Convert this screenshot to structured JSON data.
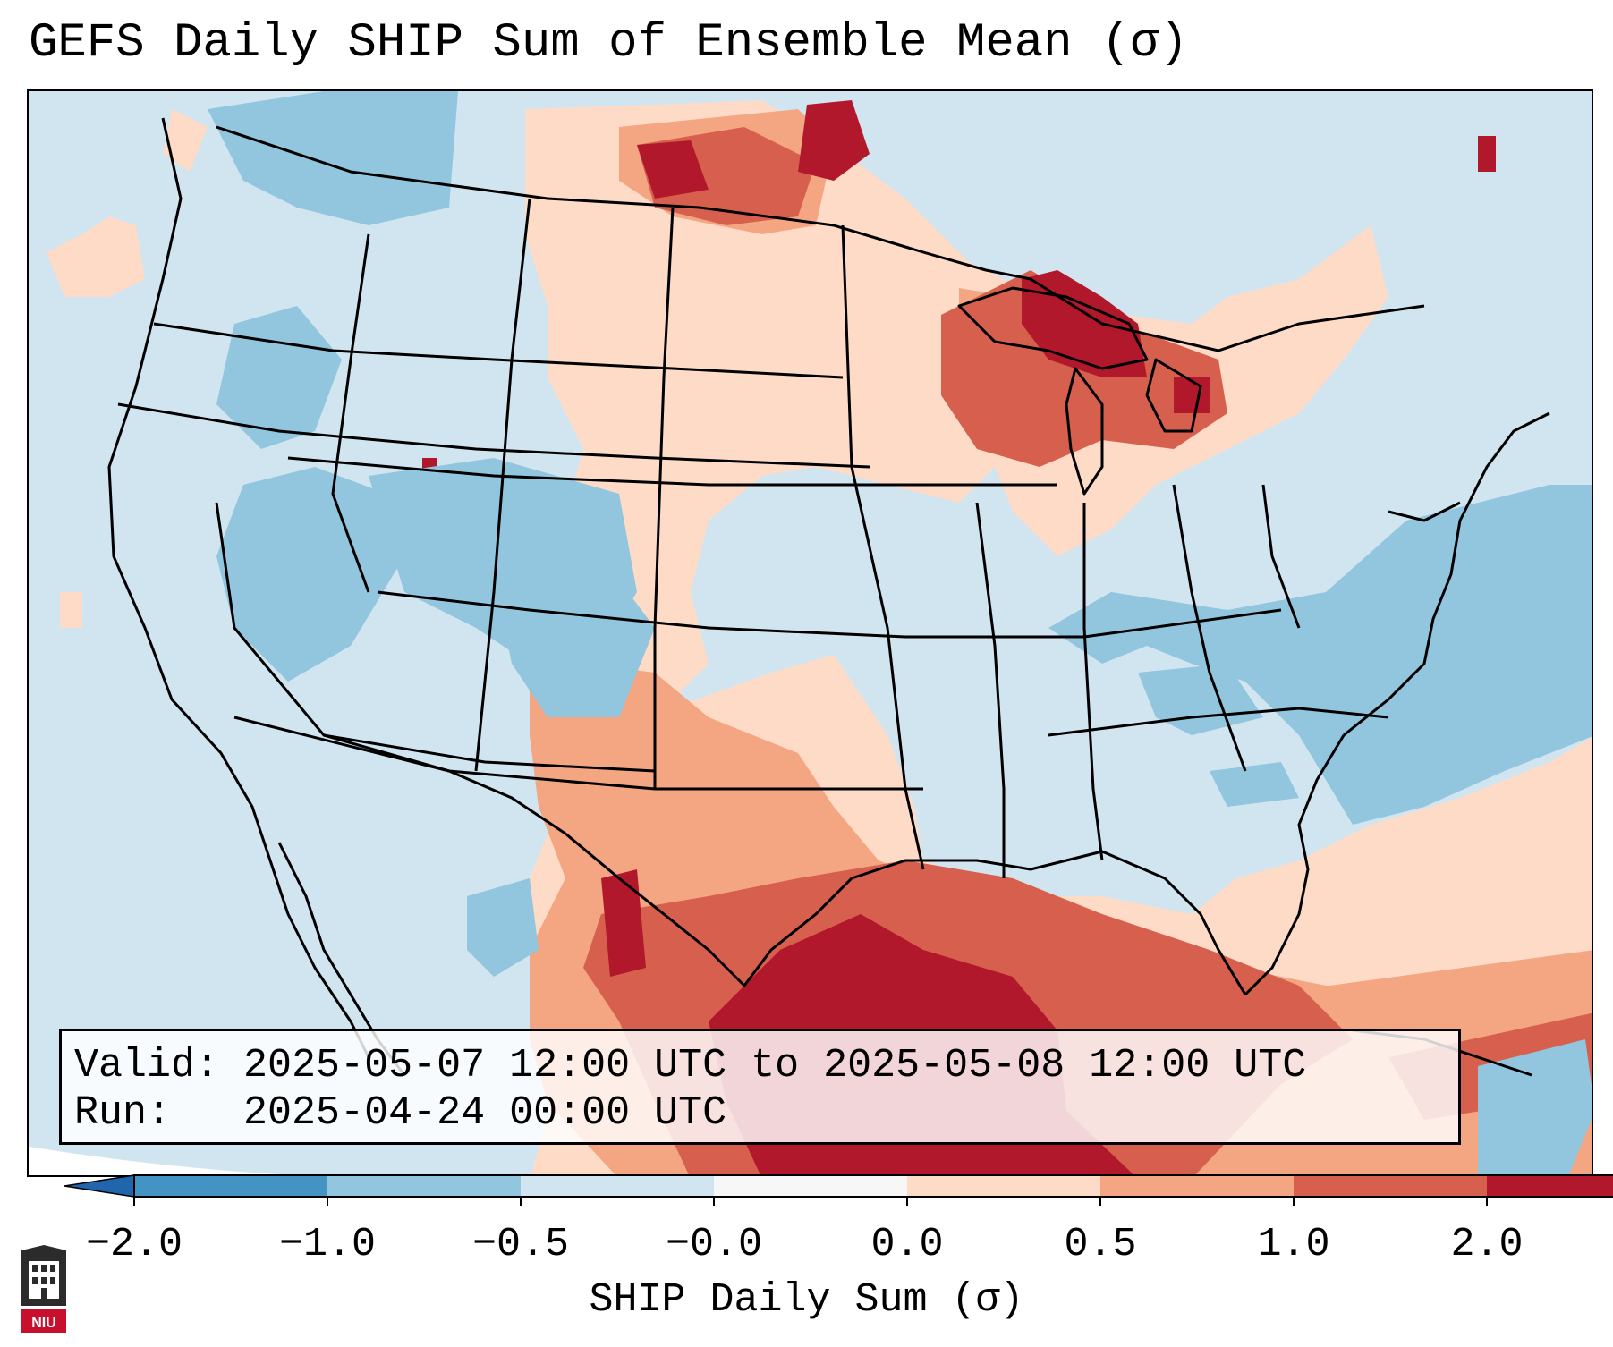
{
  "title": "GEFS Daily SHIP Sum of Ensemble Mean (σ)",
  "info": {
    "valid_label": "Valid:",
    "valid_value": "2025-05-07 12:00 UTC to 2025-05-08 12:00 UTC",
    "run_label": "Run:",
    "run_value": "2025-04-24 00:00 UTC"
  },
  "colorbar": {
    "label": "SHIP Daily Sum (σ)",
    "ticks": [
      "−2.0",
      "−1.0",
      "−0.5",
      "−0.0",
      "0.0",
      "0.5",
      "1.0",
      "2.0"
    ],
    "colors": [
      "#4393c3",
      "#92c5de",
      "#d1e5f0",
      "#f7f7f7",
      "#fddbc7",
      "#f4a582",
      "#d6604d",
      "#b2182b"
    ],
    "extend": "both"
  },
  "logo": {
    "text": "NIU",
    "icon": "niu-logo-icon"
  },
  "map": {
    "projection": "Lambert conformal, CONUS",
    "background_color": "#d1e5f0",
    "border_color": "#000000"
  }
}
